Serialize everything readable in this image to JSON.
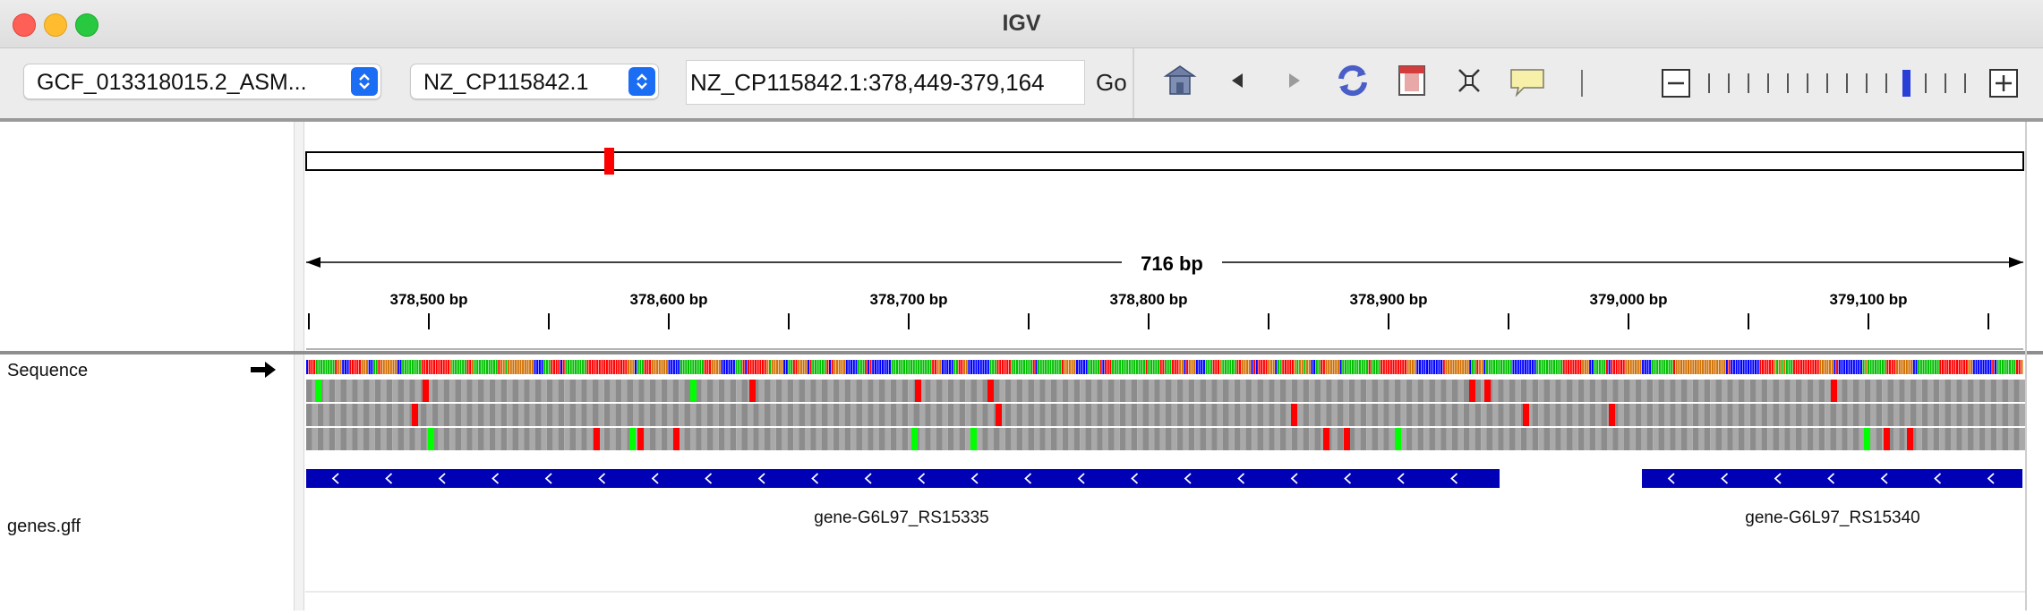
{
  "window": {
    "title": "IGV"
  },
  "toolbar": {
    "genome_select": "GCF_013318015.2_ASM...",
    "chromosome_select": "NZ_CP115842.1",
    "locus_input": "NZ_CP115842.1:378,449-379,164",
    "go_label": "Go",
    "icons": [
      "home-icon",
      "back-icon",
      "forward-icon",
      "refresh-icon",
      "roi-icon",
      "resize-icon",
      "popup-icon"
    ],
    "zoom_level_ticks": 14,
    "zoom_current_index": 10
  },
  "ruler": {
    "span_label": "716 bp",
    "ticks": [
      "378,500 bp",
      "378,600 bp",
      "378,700 bp",
      "378,800 bp",
      "378,900 bp",
      "379,000 bp",
      "379,100 bp"
    ]
  },
  "tracks": {
    "sequence_label": "Sequence",
    "genes_label": "genes.gff"
  },
  "genes": [
    {
      "name": "gene-G6L97_RS15335"
    },
    {
      "name": "gene-G6L97_RS15340"
    }
  ],
  "colors": {
    "gene": "#0000b4",
    "mismatch_red": "#ff0000",
    "mismatch_green": "#00ff00",
    "base_a": "#00c000",
    "base_c": "#0000ff",
    "base_g": "#d17105",
    "base_t": "#ff0000",
    "ideogram_marker": "#ff0000",
    "zoom_current": "#2a3fd6"
  }
}
